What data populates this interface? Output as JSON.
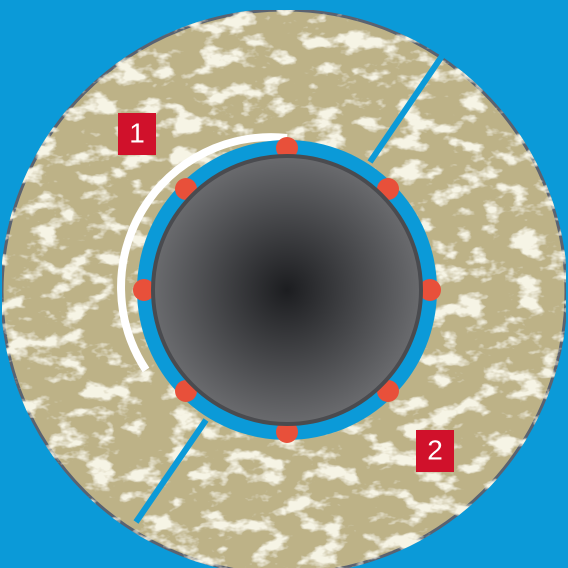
{
  "labels": [
    {
      "text": "1"
    },
    {
      "text": "2"
    }
  ]
}
